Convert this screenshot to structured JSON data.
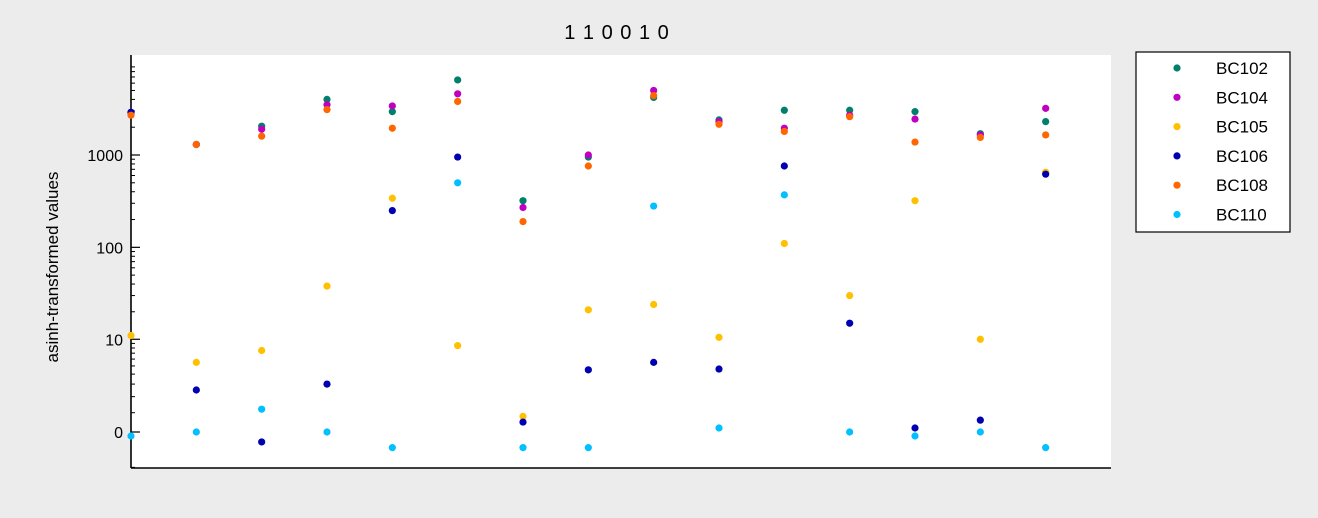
{
  "chart_data": {
    "type": "scatter",
    "title": "1 1 0 0 1 0",
    "xlabel": "",
    "ylabel": "asinh-transformed values",
    "y_scale": "asinh",
    "y_ticks": [
      0,
      10,
      100,
      1000
    ],
    "y_tick_labels": [
      "0",
      "10",
      "100",
      "1000"
    ],
    "x_count": 15,
    "grid": false,
    "legend_position": "outside-right-top",
    "series": [
      {
        "name": "BC102",
        "color": "#00806a",
        "values": [
          2900,
          1300,
          2050,
          4000,
          2950,
          6500,
          320,
          950,
          4200,
          2400,
          3050,
          3050,
          2950,
          1700,
          2300
        ]
      },
      {
        "name": "BC104",
        "color": "#c000c0",
        "values": [
          2900,
          1300,
          1900,
          3500,
          3400,
          4600,
          270,
          1000,
          5000,
          2300,
          1950,
          2700,
          2450,
          1650,
          3200
        ]
      },
      {
        "name": "BC105",
        "color": "#ffc000",
        "values": [
          11,
          5.5,
          7.5,
          38,
          340,
          8.5,
          0.8,
          21,
          24,
          10.5,
          110,
          30,
          320,
          10,
          650
        ]
      },
      {
        "name": "BC106",
        "color": "#0000b0",
        "values": [
          2900,
          2.5,
          -0.5,
          3,
          250,
          950,
          0.5,
          4.5,
          5.5,
          4.6,
          760,
          15,
          0.2,
          0.6,
          620
        ]
      },
      {
        "name": "BC108",
        "color": "#ff6600",
        "values": [
          2700,
          1300,
          1600,
          3100,
          1950,
          3800,
          190,
          760,
          4400,
          2150,
          1800,
          2600,
          1380,
          1550,
          1650
        ]
      },
      {
        "name": "BC110",
        "color": "#00c0ff",
        "values": [
          -0.2,
          0,
          1.2,
          0,
          -0.8,
          500,
          -0.8,
          -0.8,
          280,
          0.2,
          370,
          0,
          -0.2,
          0,
          -0.8
        ]
      }
    ]
  }
}
